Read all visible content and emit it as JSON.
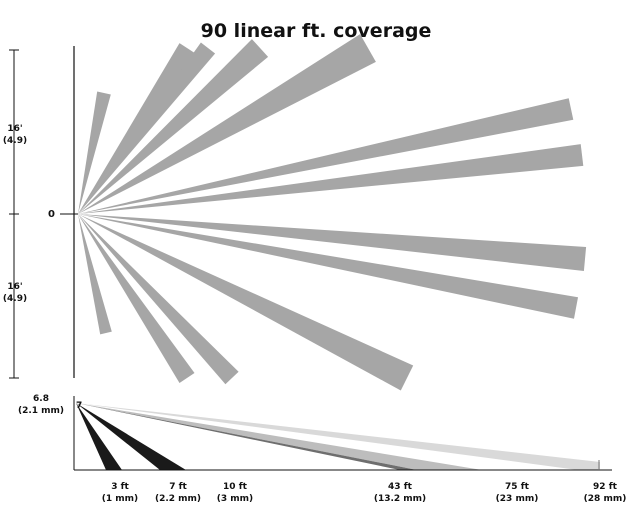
{
  "title": "90 linear ft. coverage",
  "top_view": {
    "zero_label": "0",
    "upper_span": {
      "line1": "16'",
      "line2": "(4.9)"
    },
    "lower_span": {
      "line1": "16'",
      "line2": "(4.9)"
    },
    "beam_color": "#a6a6a6",
    "beam_count": 13
  },
  "side_view": {
    "height_label": {
      "line1": "6.8",
      "line2": "(2.1 mm)"
    },
    "sensor_mark": "7",
    "distances": [
      {
        "line1": "3 ft",
        "line2": "(1 mm)"
      },
      {
        "line1": "7 ft",
        "line2": "(2.2 mm)"
      },
      {
        "line1": "10 ft",
        "line2": "(3 mm)"
      },
      {
        "line1": "43 ft",
        "line2": "(13.2 mm)"
      },
      {
        "line1": "75 ft",
        "line2": "(23 mm)"
      },
      {
        "line1": "92 ft",
        "line2": "(28 mm)"
      }
    ],
    "beam_colors": {
      "near": "#1a1a1a",
      "mid_dark": "#6e6e6e",
      "mid_light": "#bdbdbd",
      "far": "#d9d9d9"
    }
  }
}
